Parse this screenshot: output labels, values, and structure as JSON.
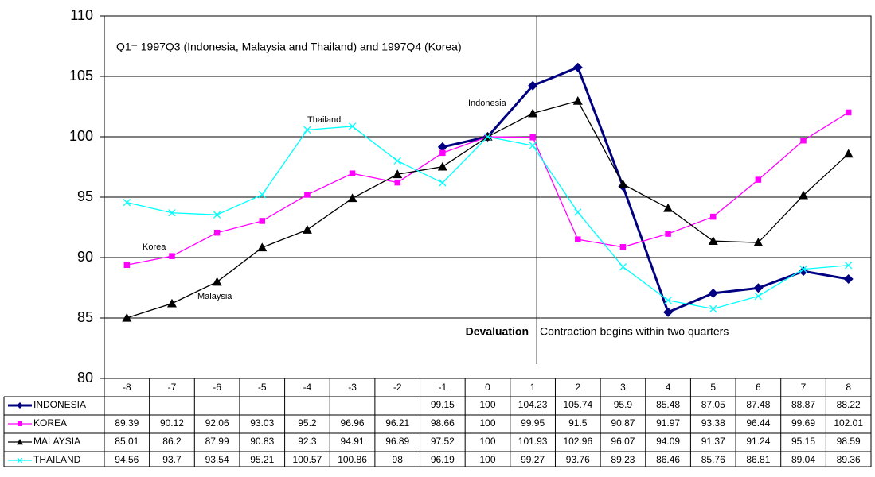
{
  "chart_data": {
    "type": "line",
    "categories": [
      "-8",
      "-7",
      "-6",
      "-5",
      "-4",
      "-3",
      "-2",
      "-1",
      "0",
      "1",
      "2",
      "3",
      "4",
      "5",
      "6",
      "7",
      "8"
    ],
    "series": [
      {
        "name": "INDONESIA",
        "color": "#000080",
        "marker": "diamond",
        "values": [
          null,
          null,
          null,
          null,
          null,
          null,
          null,
          99.15,
          100,
          104.23,
          105.74,
          95.9,
          85.48,
          87.05,
          87.48,
          88.87,
          88.22
        ]
      },
      {
        "name": "KOREA",
        "color": "#ff00ff",
        "marker": "square",
        "values": [
          89.39,
          90.12,
          92.06,
          93.03,
          95.2,
          96.96,
          96.21,
          98.66,
          100,
          99.95,
          91.5,
          90.87,
          91.97,
          93.38,
          96.44,
          99.69,
          102.01
        ]
      },
      {
        "name": "MALAYSIA",
        "color": "#000000",
        "marker": "triangle",
        "values": [
          85.01,
          86.2,
          87.99,
          90.83,
          92.3,
          94.91,
          96.89,
          97.52,
          100,
          101.93,
          102.96,
          96.07,
          94.09,
          91.37,
          91.24,
          95.15,
          98.59
        ]
      },
      {
        "name": "THAILAND",
        "color": "#00ffff",
        "marker": "x",
        "values": [
          94.56,
          93.7,
          93.54,
          95.21,
          100.57,
          100.86,
          98,
          96.19,
          100,
          99.27,
          93.76,
          89.23,
          86.46,
          85.76,
          86.81,
          89.04,
          89.36
        ]
      }
    ],
    "ylim": [
      80,
      110
    ],
    "yticks": [
      80,
      85,
      90,
      95,
      100,
      105,
      110
    ],
    "grid": true,
    "annotations": [
      "Q1= 1997Q3 (Indonesia, Malaysia  and Thailand) and 1997Q4 (Korea)",
      "Indonesia",
      "Thailand",
      "Korea",
      "Malaysia",
      "Devaluation",
      "Contraction begins within two quarters"
    ]
  }
}
